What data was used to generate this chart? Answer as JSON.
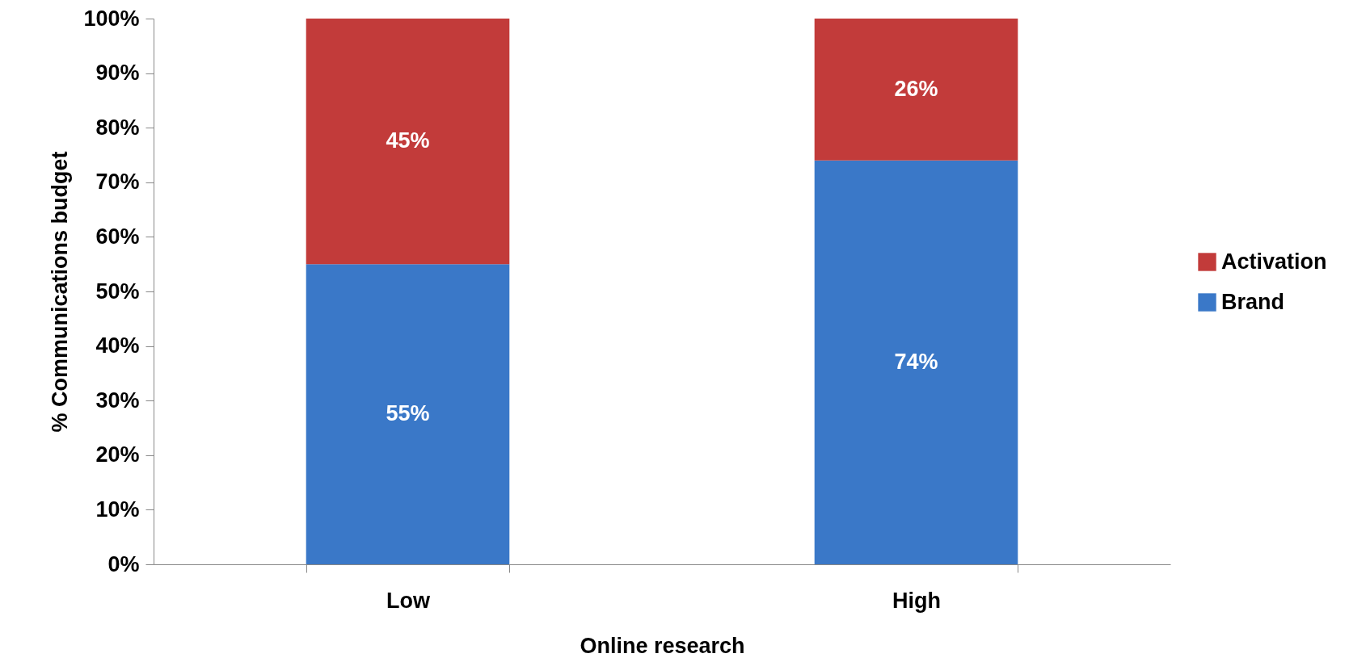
{
  "chart_data": {
    "type": "bar",
    "stacked": true,
    "xlabel": "Online research",
    "ylabel": "% Communications budget",
    "categories": [
      "Low",
      "High"
    ],
    "series": [
      {
        "name": "Brand",
        "color": "#3a78c8",
        "values": [
          55,
          74
        ],
        "value_labels": [
          "55%",
          "74%"
        ]
      },
      {
        "name": "Activation",
        "color": "#c23b3a",
        "values": [
          45,
          26
        ],
        "value_labels": [
          "45%",
          "26%"
        ]
      }
    ],
    "ylim": [
      0,
      100
    ],
    "yticks": [
      {
        "value": 0,
        "label": "0%"
      },
      {
        "value": 10,
        "label": "10%"
      },
      {
        "value": 20,
        "label": "20%"
      },
      {
        "value": 30,
        "label": "30%"
      },
      {
        "value": 40,
        "label": "40%"
      },
      {
        "value": 50,
        "label": "50%"
      },
      {
        "value": 60,
        "label": "60%"
      },
      {
        "value": 70,
        "label": "70%"
      },
      {
        "value": 80,
        "label": "80%"
      },
      {
        "value": 90,
        "label": "90%"
      },
      {
        "value": 100,
        "label": "100%"
      }
    ],
    "grid": false,
    "legend": "right"
  }
}
